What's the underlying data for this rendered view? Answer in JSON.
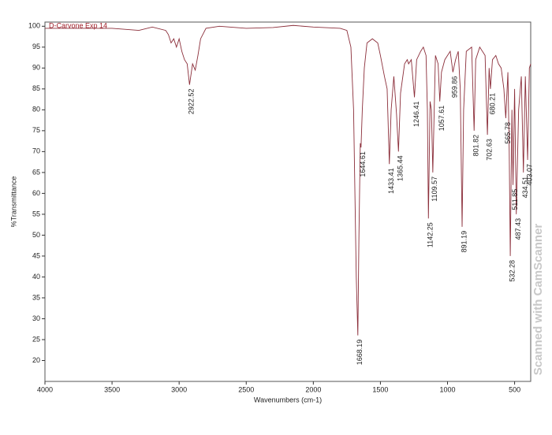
{
  "chart_data": {
    "type": "line",
    "title": "D-Carvone Exp 14",
    "x_label": "Wavenumbers (cm-1)",
    "y_label": "%Transmittance",
    "watermark": "Scanned with CamScanner",
    "xlim": [
      4000,
      380
    ],
    "ylim": [
      15,
      101
    ],
    "xticks": [
      4000,
      3500,
      3000,
      2500,
      2000,
      1500,
      1000,
      500
    ],
    "yticks": [
      20,
      25,
      30,
      35,
      40,
      45,
      50,
      55,
      60,
      65,
      70,
      75,
      80,
      85,
      90,
      95,
      100
    ],
    "series": [
      {
        "name": "D-Carvone Exp 14",
        "color": "#8b2e3a",
        "x": [
          4000,
          3800,
          3500,
          3300,
          3200,
          3100,
          3080,
          3060,
          3040,
          3020,
          3000,
          2980,
          2960,
          2940,
          2922.52,
          2900,
          2880,
          2860,
          2840,
          2800,
          2700,
          2500,
          2300,
          2150,
          2000,
          1800,
          1750,
          1720,
          1700,
          1680,
          1668.19,
          1660,
          1650,
          1644.61,
          1635,
          1620,
          1600,
          1560,
          1520,
          1500,
          1470,
          1450,
          1433.41,
          1420,
          1400,
          1380,
          1365.44,
          1350,
          1320,
          1300,
          1290,
          1270,
          1246.41,
          1230,
          1200,
          1180,
          1160,
          1150,
          1142.25,
          1130,
          1120,
          1109.57,
          1090,
          1070,
          1057.61,
          1045,
          1020,
          1000,
          980,
          959.86,
          940,
          920,
          905,
          891.19,
          880,
          860,
          820,
          801.82,
          790,
          760,
          720,
          702.63,
          690,
          680.21,
          665,
          640,
          620,
          600,
          580,
          565.78,
          550,
          540,
          532.28,
          520,
          511.85,
          500,
          487.43,
          470,
          450,
          434.51,
          420,
          403.07,
          390,
          380
        ],
        "values": [
          99.5,
          99.5,
          99.5,
          99,
          99.8,
          99,
          98,
          96,
          97,
          95,
          97,
          94,
          92,
          91,
          86,
          91,
          89.5,
          93,
          97,
          99.5,
          100,
          99.5,
          99.7,
          100.2,
          99.8,
          99.5,
          99,
          95,
          80,
          40,
          26,
          50,
          72,
          71,
          80,
          90,
          96,
          97,
          96,
          93,
          88,
          85,
          67,
          80,
          88,
          79,
          70,
          84,
          91,
          92,
          91,
          92,
          83,
          92,
          94,
          95,
          93,
          80,
          54,
          82,
          80,
          65,
          93,
          91,
          82,
          89,
          92,
          93,
          94,
          89,
          92,
          94,
          85,
          52,
          80,
          94,
          95,
          75,
          92,
          95,
          93,
          74,
          90,
          85,
          92,
          93,
          91,
          90,
          85,
          78,
          89,
          70,
          45,
          80,
          62,
          85,
          55,
          80,
          88,
          65,
          88,
          68,
          90,
          91
        ]
      }
    ],
    "peak_labels": [
      2922.52,
      1668.19,
      1644.61,
      1433.41,
      1365.44,
      1246.41,
      1142.25,
      1109.57,
      1057.61,
      959.86,
      891.19,
      801.82,
      702.63,
      680.21,
      565.78,
      532.28,
      511.85,
      487.43,
      434.51,
      403.07
    ]
  }
}
